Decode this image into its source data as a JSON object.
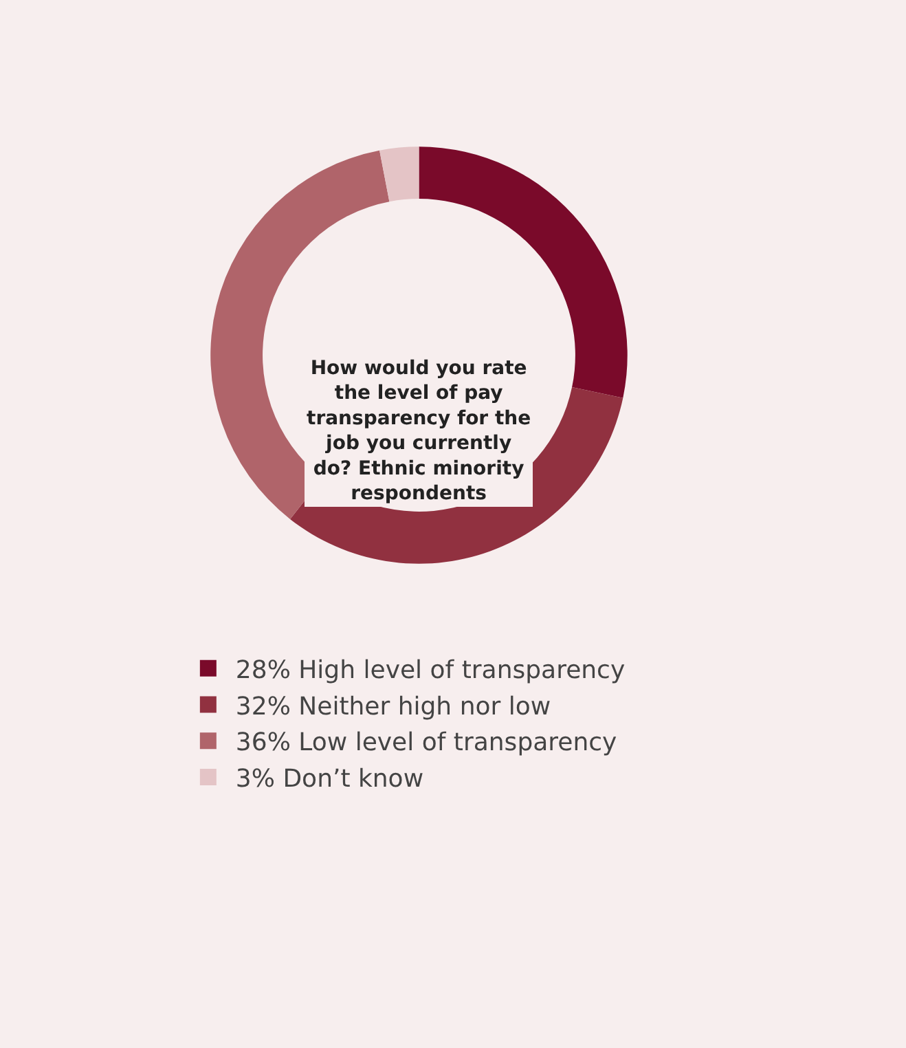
{
  "chart_data": {
    "type": "donut",
    "title": "How would you rate the level of pay transparency for the job you currently do? Ethnic minority respondents",
    "categories": [
      "High level of transparency",
      "Neither high nor low",
      "Low level of transparency",
      "Don’t know"
    ],
    "values": [
      28,
      32,
      36,
      3
    ],
    "value_labels": [
      "28%",
      "32%",
      "36%",
      "3%"
    ],
    "colors": [
      "#7a0a2a",
      "#913140",
      "#b0646a",
      "#e4c4c6"
    ],
    "legend": "bottom"
  }
}
